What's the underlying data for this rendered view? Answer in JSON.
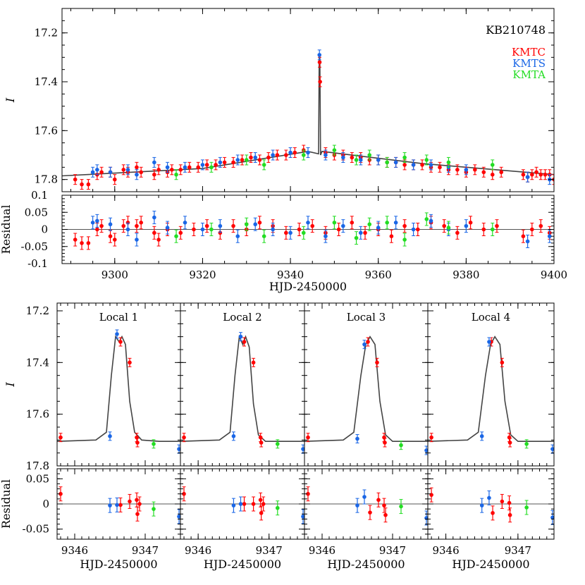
{
  "colors": {
    "KMTC": "#ff0000",
    "KMTS": "#1a66e6",
    "KMTA": "#22dd22",
    "model": "#444444"
  },
  "chart_data": [
    {
      "type": "scatter",
      "title": "KB210748",
      "legend": [
        "KMTC",
        "KMTS",
        "KMTA"
      ],
      "legend_placement": "top-right",
      "ylabel": "I",
      "xlim": [
        9288,
        9400
      ],
      "ylim": [
        17.85,
        17.1
      ],
      "yticks": [
        "17.2",
        "17.4",
        "17.6",
        "17.8"
      ],
      "model_baseline": {
        "x": [
          9288,
          9320,
          9344,
          9346.4,
          9346.55,
          9346.7,
          9346.85,
          9347.2,
          9370,
          9400
        ],
        "y": [
          17.785,
          17.755,
          17.685,
          17.695,
          17.3,
          17.3,
          17.7,
          17.685,
          17.735,
          17.78
        ]
      },
      "series": [
        {
          "name": "KMTC",
          "x": [
            9291,
            9292.5,
            9294,
            9296,
            9297,
            9299,
            9300,
            9302,
            9303,
            9305,
            9306,
            9309,
            9310,
            9312,
            9313,
            9315,
            9317,
            9319,
            9321,
            9323,
            9325,
            9327,
            9329,
            9331,
            9333,
            9335,
            9337,
            9339,
            9341,
            9343,
            9346.65,
            9346.75,
            9348,
            9350,
            9352,
            9354,
            9356,
            9358,
            9360,
            9362,
            9364,
            9366,
            9368,
            9370,
            9372,
            9374,
            9376,
            9378,
            9380,
            9382,
            9384,
            9386,
            9388,
            9393,
            9394,
            9395,
            9396,
            9397,
            9398,
            9399,
            9400
          ],
          "y": [
            17.8,
            17.82,
            17.82,
            17.78,
            17.77,
            17.77,
            17.8,
            17.76,
            17.77,
            17.75,
            17.77,
            17.78,
            17.76,
            17.77,
            17.76,
            17.76,
            17.75,
            17.75,
            17.74,
            17.74,
            17.73,
            17.73,
            17.72,
            17.71,
            17.72,
            17.71,
            17.7,
            17.7,
            17.69,
            17.68,
            17.32,
            17.4,
            17.69,
            17.7,
            17.7,
            17.71,
            17.71,
            17.72,
            17.72,
            17.73,
            17.73,
            17.74,
            17.74,
            17.74,
            17.75,
            17.75,
            17.76,
            17.76,
            17.77,
            17.76,
            17.77,
            17.78,
            17.77,
            17.78,
            17.79,
            17.78,
            17.77,
            17.78,
            17.78,
            17.78,
            17.8
          ]
        },
        {
          "name": "KMTS",
          "x": [
            9295,
            9296,
            9299,
            9303,
            9305,
            9309,
            9312,
            9316,
            9320,
            9324,
            9328,
            9332,
            9336,
            9340,
            9344,
            9346.6,
            9348,
            9352,
            9356,
            9360,
            9364,
            9368,
            9372,
            9376,
            9380,
            9394,
            9399
          ],
          "y": [
            17.77,
            17.76,
            17.77,
            17.76,
            17.78,
            17.73,
            17.75,
            17.75,
            17.74,
            17.73,
            17.72,
            17.71,
            17.7,
            17.69,
            17.69,
            17.29,
            17.7,
            17.71,
            17.72,
            17.72,
            17.73,
            17.74,
            17.74,
            17.75,
            17.76,
            17.79,
            17.8
          ]
        },
        {
          "name": "KMTA",
          "x": [
            9314,
            9322,
            9330,
            9334,
            9343,
            9350,
            9355,
            9358,
            9362,
            9366,
            9371,
            9376,
            9386
          ],
          "y": [
            17.78,
            17.75,
            17.72,
            17.74,
            17.7,
            17.68,
            17.72,
            17.7,
            17.73,
            17.71,
            17.72,
            17.73,
            17.74
          ]
        }
      ]
    },
    {
      "type": "scatter",
      "ylabel": "Residual",
      "xlabel": "HJD-2450000",
      "xlim": [
        9288,
        9400
      ],
      "ylim": [
        -0.1,
        0.1
      ],
      "xticks": [
        "9300",
        "9320",
        "9340",
        "9360",
        "9380",
        "9400"
      ],
      "yticks": [
        "-0.1",
        "-0.05",
        "0",
        "0.05",
        "0.1"
      ],
      "series": [
        {
          "name": "KMTC",
          "x": [
            9291,
            9292.5,
            9294,
            9296,
            9297,
            9299,
            9300,
            9302,
            9303,
            9305,
            9306,
            9309,
            9310,
            9312,
            9315,
            9318,
            9321,
            9324,
            9327,
            9330,
            9333,
            9336,
            9339,
            9342,
            9345,
            9348,
            9351,
            9354,
            9357,
            9360,
            9363,
            9366,
            9369,
            9372,
            9375,
            9378,
            9381,
            9384,
            9387,
            9393,
            9395,
            9397,
            9399
          ],
          "y": [
            -0.03,
            -0.04,
            -0.04,
            0,
            0.01,
            -0.02,
            -0.03,
            0.01,
            0.02,
            0.01,
            0.02,
            -0.01,
            -0.03,
            0.0,
            -0.01,
            0.0,
            0.01,
            -0.01,
            0.01,
            0.0,
            0.02,
            0.01,
            -0.01,
            0.0,
            0.01,
            -0.01,
            0.0,
            0.02,
            -0.01,
            0.0,
            -0.02,
            0.01,
            0.0,
            0.02,
            0.01,
            -0.01,
            0.02,
            0.0,
            0.01,
            -0.02,
            0.0,
            0.01,
            -0.01
          ]
        },
        {
          "name": "KMTS",
          "x": [
            9295,
            9296,
            9299,
            9303,
            9305,
            9309,
            9312,
            9316,
            9320,
            9324,
            9328,
            9332,
            9336,
            9340,
            9344,
            9348,
            9352,
            9356,
            9360,
            9364,
            9368,
            9372,
            9376,
            9380,
            9394,
            9399
          ],
          "y": [
            0.02,
            0.025,
            0.015,
            0.0,
            -0.03,
            0.035,
            0.005,
            0.02,
            0.0,
            0.01,
            -0.02,
            0.015,
            0.0,
            -0.01,
            0.02,
            -0.02,
            0.01,
            -0.01,
            0.005,
            0.02,
            0.0,
            0.025,
            0.0,
            0.01,
            -0.035,
            -0.02
          ]
        },
        {
          "name": "KMTA",
          "x": [
            9314,
            9322,
            9330,
            9334,
            9343,
            9350,
            9355,
            9358,
            9362,
            9366,
            9371,
            9376,
            9386
          ],
          "y": [
            -0.02,
            0.0,
            0.015,
            -0.02,
            -0.01,
            0.02,
            -0.025,
            0.015,
            0.02,
            -0.03,
            0.03,
            0.005,
            0.0
          ]
        }
      ]
    },
    {
      "type": "scatter",
      "title": "Local  1",
      "ylabel": "I",
      "xlim": [
        9345.75,
        9347.5
      ],
      "ylim": [
        17.8,
        17.17
      ],
      "xticks": [
        "9346",
        "9347"
      ],
      "yticks": [
        "17.2",
        "17.4",
        "17.6",
        "17.8"
      ],
      "model": {
        "x": [
          9345.75,
          9346.3,
          9346.45,
          9346.52,
          9346.58,
          9346.63,
          9346.67,
          9346.72,
          9346.78,
          9346.85,
          9346.95,
          9347.2,
          9347.5
        ],
        "y": [
          17.705,
          17.7,
          17.67,
          17.45,
          17.3,
          17.32,
          17.3,
          17.33,
          17.55,
          17.67,
          17.7,
          17.705,
          17.705
        ]
      },
      "series": [
        {
          "name": "KMTC",
          "x": [
            9345.8,
            9346.65,
            9346.78,
            9346.88,
            9346.89
          ],
          "y": [
            17.69,
            17.32,
            17.4,
            17.69,
            17.71
          ]
        },
        {
          "name": "KMTS",
          "x": [
            9346.5,
            9346.6,
            9347.48
          ],
          "y": [
            17.685,
            17.29,
            17.735
          ]
        },
        {
          "name": "KMTA",
          "x": [
            9347.12
          ],
          "y": [
            17.715
          ]
        }
      ]
    },
    {
      "type": "scatter",
      "title": "Local  2",
      "xlim": [
        9345.75,
        9347.5
      ],
      "ylim": [
        17.8,
        17.17
      ],
      "xticks": [
        "9346",
        "9347"
      ],
      "model": {
        "x": [
          9345.75,
          9346.3,
          9346.45,
          9346.52,
          9346.58,
          9346.63,
          9346.67,
          9346.72,
          9346.78,
          9346.85,
          9346.95,
          9347.2,
          9347.5
        ],
        "y": [
          17.705,
          17.7,
          17.67,
          17.45,
          17.3,
          17.33,
          17.3,
          17.34,
          17.56,
          17.68,
          17.705,
          17.705,
          17.705
        ]
      },
      "series": [
        {
          "name": "KMTC",
          "x": [
            9345.8,
            9346.65,
            9346.78,
            9346.88,
            9346.89
          ],
          "y": [
            17.69,
            17.32,
            17.4,
            17.69,
            17.71
          ]
        },
        {
          "name": "KMTS",
          "x": [
            9346.5,
            9346.6,
            9347.48
          ],
          "y": [
            17.685,
            17.3,
            17.735
          ]
        },
        {
          "name": "KMTA",
          "x": [
            9347.12
          ],
          "y": [
            17.715
          ]
        }
      ]
    },
    {
      "type": "scatter",
      "title": "Local  3",
      "xlim": [
        9345.75,
        9347.5
      ],
      "ylim": [
        17.8,
        17.17
      ],
      "xticks": [
        "9346",
        "9347"
      ],
      "model": {
        "x": [
          9345.75,
          9346.3,
          9346.45,
          9346.55,
          9346.62,
          9346.68,
          9346.75,
          9346.82,
          9346.9,
          9347.0,
          9347.2,
          9347.5
        ],
        "y": [
          17.705,
          17.7,
          17.67,
          17.45,
          17.33,
          17.3,
          17.33,
          17.55,
          17.68,
          17.705,
          17.705,
          17.705
        ]
      },
      "series": [
        {
          "name": "KMTC",
          "x": [
            9345.8,
            9346.65,
            9346.78,
            9346.88,
            9346.89
          ],
          "y": [
            17.69,
            17.32,
            17.4,
            17.69,
            17.71
          ]
        },
        {
          "name": "KMTS",
          "x": [
            9346.5,
            9346.6,
            9347.48
          ],
          "y": [
            17.695,
            17.33,
            17.74
          ]
        },
        {
          "name": "KMTA",
          "x": [
            9347.12
          ],
          "y": [
            17.72
          ]
        }
      ]
    },
    {
      "type": "scatter",
      "title": "Local  4",
      "xlim": [
        9345.75,
        9347.5
      ],
      "ylim": [
        17.8,
        17.17
      ],
      "xticks": [
        "9346",
        "9347"
      ],
      "model": {
        "x": [
          9345.75,
          9346.3,
          9346.45,
          9346.55,
          9346.62,
          9346.68,
          9346.75,
          9346.82,
          9346.9,
          9347.0,
          9347.2,
          9347.5
        ],
        "y": [
          17.705,
          17.7,
          17.67,
          17.45,
          17.33,
          17.3,
          17.33,
          17.55,
          17.68,
          17.705,
          17.705,
          17.705
        ]
      },
      "series": [
        {
          "name": "KMTC",
          "x": [
            9345.8,
            9346.63,
            9346.78,
            9346.88,
            9346.89
          ],
          "y": [
            17.69,
            17.32,
            17.4,
            17.69,
            17.71
          ]
        },
        {
          "name": "KMTS",
          "x": [
            9346.5,
            9346.6,
            9347.48
          ],
          "y": [
            17.685,
            17.32,
            17.735
          ]
        },
        {
          "name": "KMTA",
          "x": [
            9347.12
          ],
          "y": [
            17.715
          ]
        }
      ]
    },
    {
      "type": "scatter",
      "ylabel": "Residual",
      "xlabel": "HJD-2450000",
      "xlim": [
        9345.75,
        9347.5
      ],
      "ylim": [
        -0.07,
        0.07
      ],
      "xticks": [
        "9346",
        "9347"
      ],
      "yticks": [
        "-0.05",
        "0",
        "0.05"
      ],
      "series": [
        {
          "name": "KMTC",
          "x": [
            9345.8,
            9346.65,
            9346.78,
            9346.88,
            9346.89,
            9346.92
          ],
          "y": [
            0.02,
            -0.002,
            0.005,
            0.008,
            -0.02,
            0.0
          ]
        },
        {
          "name": "KMTS",
          "x": [
            9346.5,
            9346.6,
            9347.48
          ],
          "y": [
            -0.003,
            -0.002,
            -0.025
          ]
        },
        {
          "name": "KMTA",
          "x": [
            9347.12
          ],
          "y": [
            -0.01
          ]
        }
      ]
    },
    {
      "type": "scatter",
      "xlabel": "HJD-2450000",
      "xlim": [
        9345.75,
        9347.5
      ],
      "ylim": [
        -0.07,
        0.07
      ],
      "xticks": [
        "9346",
        "9347"
      ],
      "series": [
        {
          "name": "KMTC",
          "x": [
            9345.8,
            9346.65,
            9346.78,
            9346.88,
            9346.89,
            9346.92
          ],
          "y": [
            0.02,
            0.0,
            0.0,
            0.008,
            -0.018,
            0.0
          ]
        },
        {
          "name": "KMTS",
          "x": [
            9346.5,
            9346.6,
            9347.48
          ],
          "y": [
            -0.003,
            0.0,
            -0.025
          ]
        },
        {
          "name": "KMTA",
          "x": [
            9347.12
          ],
          "y": [
            -0.008
          ]
        }
      ]
    },
    {
      "type": "scatter",
      "xlabel": "HJD-2450000",
      "xlim": [
        9345.75,
        9347.5
      ],
      "ylim": [
        -0.07,
        0.07
      ],
      "xticks": [
        "9346",
        "9347"
      ],
      "series": [
        {
          "name": "KMTC",
          "x": [
            9345.8,
            9346.68,
            9346.8,
            9346.88,
            9346.9
          ],
          "y": [
            0.02,
            -0.017,
            0.008,
            -0.003,
            -0.022
          ]
        },
        {
          "name": "KMTS",
          "x": [
            9346.5,
            9346.6,
            9347.48
          ],
          "y": [
            -0.003,
            0.014,
            -0.028
          ]
        },
        {
          "name": "KMTA",
          "x": [
            9347.12
          ],
          "y": [
            -0.005
          ]
        }
      ]
    },
    {
      "type": "scatter",
      "xlabel": "HJD-2450000",
      "xlim": [
        9345.75,
        9347.5
      ],
      "ylim": [
        -0.07,
        0.07
      ],
      "xticks": [
        "9346",
        "9347"
      ],
      "series": [
        {
          "name": "KMTC",
          "x": [
            9345.8,
            9346.65,
            9346.78,
            9346.88,
            9346.89
          ],
          "y": [
            0.018,
            -0.018,
            0.005,
            0.002,
            -0.022
          ]
        },
        {
          "name": "KMTS",
          "x": [
            9346.5,
            9346.6,
            9347.48
          ],
          "y": [
            -0.003,
            0.012,
            -0.027
          ]
        },
        {
          "name": "KMTA",
          "x": [
            9347.12
          ],
          "y": [
            -0.007
          ]
        }
      ]
    }
  ]
}
